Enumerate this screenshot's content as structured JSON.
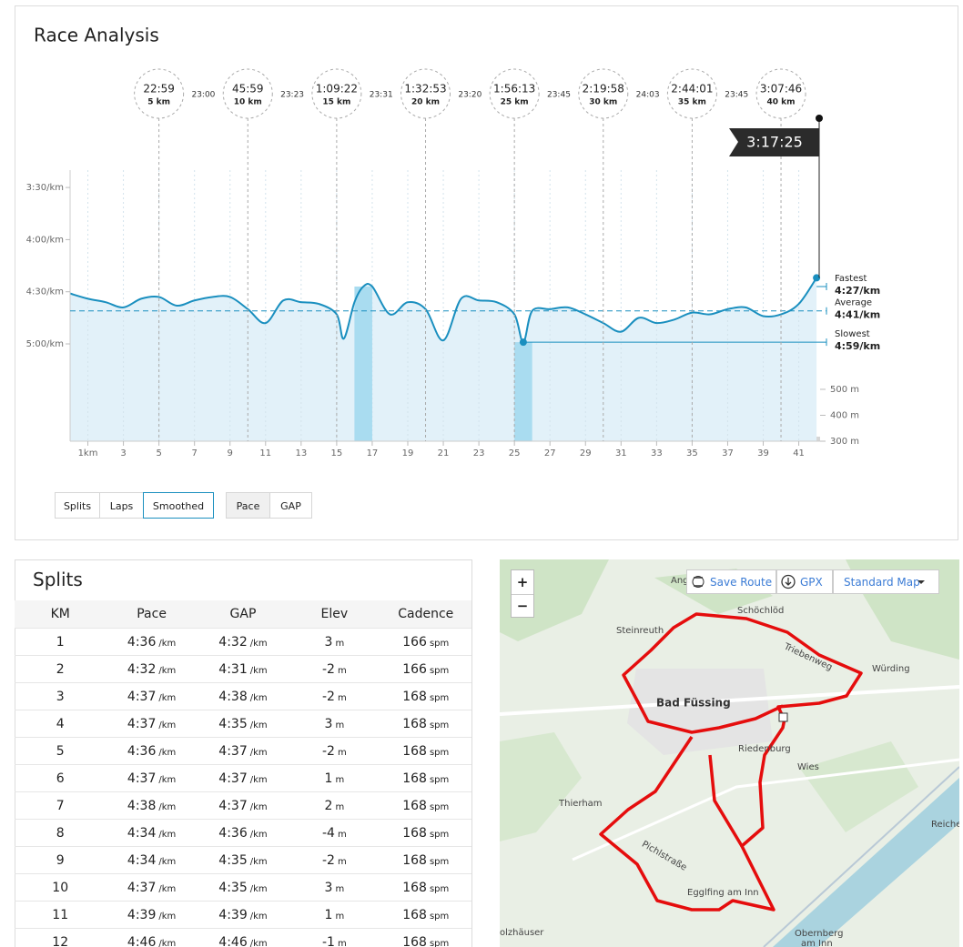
{
  "race_analysis": {
    "title": "Race Analysis",
    "splits": [
      {
        "time": "22:59",
        "label": "5 km",
        "km": 5
      },
      {
        "time": "45:59",
        "label": "10 km",
        "km": 10
      },
      {
        "time": "1:09:22",
        "label": "15 km",
        "km": 15
      },
      {
        "time": "1:32:53",
        "label": "20 km",
        "km": 20
      },
      {
        "time": "1:56:13",
        "label": "25 km",
        "km": 25
      },
      {
        "time": "2:19:58",
        "label": "30 km",
        "km": 30
      },
      {
        "time": "2:44:01",
        "label": "35 km",
        "km": 35
      },
      {
        "time": "3:07:46",
        "label": "40 km",
        "km": 40
      }
    ],
    "split_intervals": [
      "23:00",
      "23:23",
      "23:31",
      "23:20",
      "23:45",
      "24:03",
      "23:45"
    ],
    "finish_time": "3:17:25",
    "chart_data": {
      "type": "line",
      "x": [
        0,
        1,
        2,
        3,
        4,
        5,
        6,
        7,
        8,
        9,
        10,
        11,
        12,
        13,
        14,
        15,
        15.4,
        16,
        16.5,
        17,
        18,
        19,
        20,
        21,
        22,
        23,
        24,
        25,
        25.5,
        26,
        27,
        28,
        29,
        30,
        31,
        32,
        33,
        34,
        35,
        36,
        37,
        38,
        39,
        40,
        41,
        42
      ],
      "series": [
        {
          "name": "Pace",
          "color": "#1a8fbf",
          "values": [
            271,
            274,
            276,
            279,
            274,
            273,
            278,
            275,
            273,
            273,
            280,
            288,
            275,
            276,
            277,
            283,
            297,
            276,
            267,
            267,
            283,
            276,
            280,
            298,
            274,
            275,
            276,
            283,
            299,
            281,
            280,
            279,
            283,
            288,
            293,
            285,
            288,
            286,
            282,
            283,
            280,
            279,
            284,
            283,
            277,
            262
          ]
        }
      ],
      "xlim": [
        0,
        42.2
      ],
      "xticks": [
        {
          "value": 1,
          "label": "1km"
        },
        3,
        5,
        7,
        9,
        11,
        13,
        15,
        17,
        19,
        21,
        23,
        25,
        27,
        29,
        31,
        33,
        35,
        37,
        39,
        41
      ],
      "ylim": [
        200,
        356
      ],
      "y_inverted": true,
      "yticks": [
        {
          "value": 210,
          "label": "3:30/km"
        },
        {
          "value": 240,
          "label": "4:00/km"
        },
        {
          "value": 270,
          "label": "4:30/km"
        },
        {
          "value": 300,
          "label": "5:00/km"
        }
      ],
      "y2lim": [
        300,
        1345
      ],
      "y2ticks": [
        {
          "value": 500,
          "label": "500 m"
        },
        {
          "value": 400,
          "label": "400 m"
        },
        {
          "value": 300,
          "label": "300 m"
        }
      ],
      "grid": true,
      "reference_lines": [
        {
          "name": "Fastest",
          "value": 267,
          "label": "4:27/km",
          "range": [
            16,
            17
          ]
        },
        {
          "name": "Average",
          "value": 281,
          "label": "4:41/km"
        },
        {
          "name": "Slowest",
          "value": 299,
          "label": "4:59/km",
          "range": [
            25,
            26
          ]
        }
      ]
    },
    "view_buttons": [
      {
        "label": "Splits"
      },
      {
        "label": "Laps"
      },
      {
        "label": "Smoothed",
        "selected": true
      }
    ],
    "metric_buttons": [
      {
        "label": "Pace",
        "selected": true
      },
      {
        "label": "GAP"
      }
    ]
  },
  "splits_table": {
    "title": "Splits",
    "columns": [
      "KM",
      "Pace",
      "GAP",
      "Elev",
      "Cadence"
    ],
    "units": {
      "pace": "/km",
      "gap": "/km",
      "elev": "m",
      "cadence": "spm"
    },
    "rows": [
      {
        "km": 1,
        "pace": "4:36",
        "gap": "4:32",
        "elev": 3,
        "cadence": 166
      },
      {
        "km": 2,
        "pace": "4:32",
        "gap": "4:31",
        "elev": -2,
        "cadence": 166
      },
      {
        "km": 3,
        "pace": "4:37",
        "gap": "4:38",
        "elev": -2,
        "cadence": 168
      },
      {
        "km": 4,
        "pace": "4:37",
        "gap": "4:35",
        "elev": 3,
        "cadence": 168
      },
      {
        "km": 5,
        "pace": "4:36",
        "gap": "4:37",
        "elev": -2,
        "cadence": 168
      },
      {
        "km": 6,
        "pace": "4:37",
        "gap": "4:37",
        "elev": 1,
        "cadence": 168
      },
      {
        "km": 7,
        "pace": "4:38",
        "gap": "4:37",
        "elev": 2,
        "cadence": 168
      },
      {
        "km": 8,
        "pace": "4:34",
        "gap": "4:36",
        "elev": -4,
        "cadence": 168
      },
      {
        "km": 9,
        "pace": "4:34",
        "gap": "4:35",
        "elev": -2,
        "cadence": 168
      },
      {
        "km": 10,
        "pace": "4:37",
        "gap": "4:35",
        "elev": 3,
        "cadence": 168
      },
      {
        "km": 11,
        "pace": "4:39",
        "gap": "4:39",
        "elev": 1,
        "cadence": 168
      },
      {
        "km": 12,
        "pace": "4:46",
        "gap": "4:46",
        "elev": -1,
        "cadence": 168
      }
    ]
  },
  "map": {
    "controls": {
      "zoom_in": "+",
      "zoom_out": "−",
      "save_route": "Save Route",
      "gpx": "GPX",
      "map_style": "Standard Map"
    },
    "places": [
      "Ang",
      "Schöchlöd",
      "Steinreuth",
      "Triebenweg",
      "Würding",
      "Bad Füssing",
      "Riedenburg",
      "Wies",
      "Thierham",
      "Pichlstraße",
      "Egglfing am Inn",
      "olzhäuser",
      "Reiche",
      [
        "Obernberg",
        "am Inn"
      ]
    ]
  }
}
